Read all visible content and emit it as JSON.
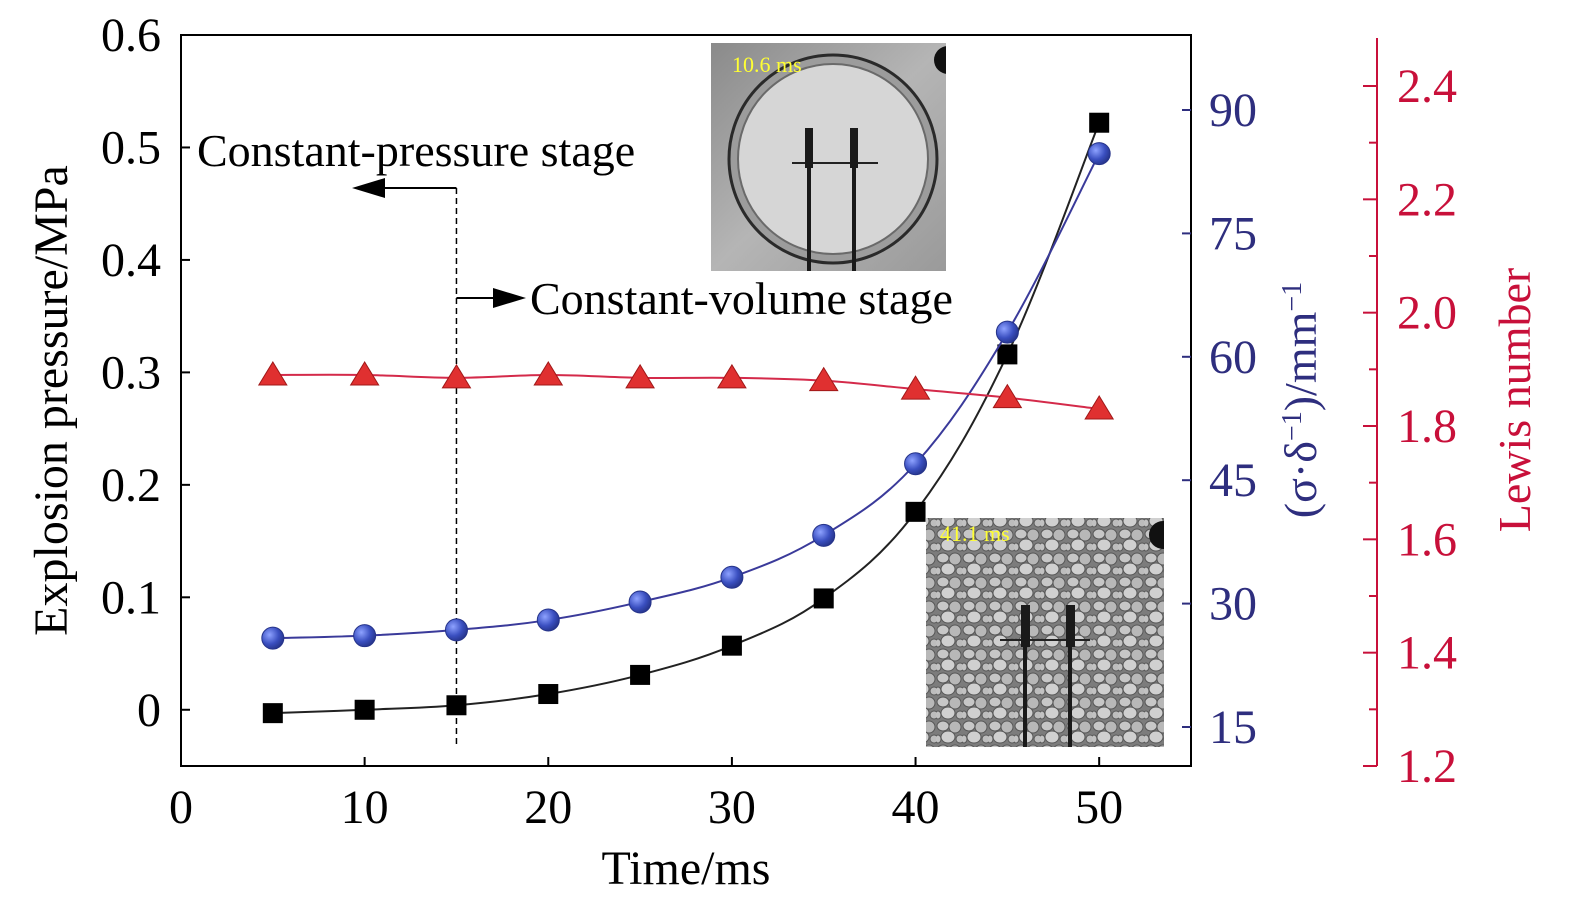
{
  "chart_data": {
    "type": "line",
    "x": [
      5,
      10,
      15,
      20,
      25,
      30,
      35,
      40,
      45,
      50
    ],
    "xlabel": "Time/ms",
    "xlim": [
      0,
      55
    ],
    "xticks": [
      "0",
      "10",
      "20",
      "30",
      "40",
      "50"
    ],
    "y_left": {
      "label": "Explosion pressure/MPa",
      "lim": [
        -0.05,
        0.6
      ],
      "ticks": [
        "0",
        "0.1",
        "0.2",
        "0.3",
        "0.4",
        "0.5",
        "0.6"
      ]
    },
    "y_right1": {
      "label_prefix": "(σ·δ",
      "label_sup1": "−1",
      "label_mid": ")/mm",
      "label_sup2": "−1",
      "lim": [
        12.5,
        99
      ],
      "ticks": [
        "15",
        "30",
        "45",
        "60",
        "75",
        "90"
      ],
      "color": "#2e2e7e"
    },
    "y_right2": {
      "label": "Lewis number",
      "lim": [
        1.2,
        2.5
      ],
      "ticks": [
        "1.2",
        "1.4",
        "1.6",
        "1.8",
        "2.0",
        "2.2",
        "2.4"
      ],
      "color": "#c8103a"
    },
    "series": [
      {
        "axis": "y_left",
        "marker": "square",
        "color": "#000000",
        "values": [
          -0.003,
          0.0,
          0.004,
          0.014,
          0.031,
          0.057,
          0.099,
          0.176,
          0.316,
          0.522
        ]
      },
      {
        "axis": "y_right1",
        "marker": "circle",
        "color": "#3a4fc0",
        "values": [
          25.8,
          26.1,
          26.8,
          28.0,
          30.2,
          33.2,
          38.3,
          47.0,
          63.0,
          84.7
        ]
      },
      {
        "axis": "y_right2",
        "marker": "triangle",
        "color": "#d42a2a",
        "values": [
          1.89,
          1.89,
          1.885,
          1.89,
          1.885,
          1.885,
          1.88,
          1.865,
          1.85,
          1.83
        ]
      }
    ],
    "annotations": {
      "cp_stage": "Constant-pressure stage",
      "cv_stage": "Constant-volume stage",
      "divider_x": 15
    }
  },
  "insets": [
    {
      "label": "10.6 ms",
      "texture": "smooth flame"
    },
    {
      "label": "41.1 ms",
      "texture": "cellular flame"
    }
  ]
}
